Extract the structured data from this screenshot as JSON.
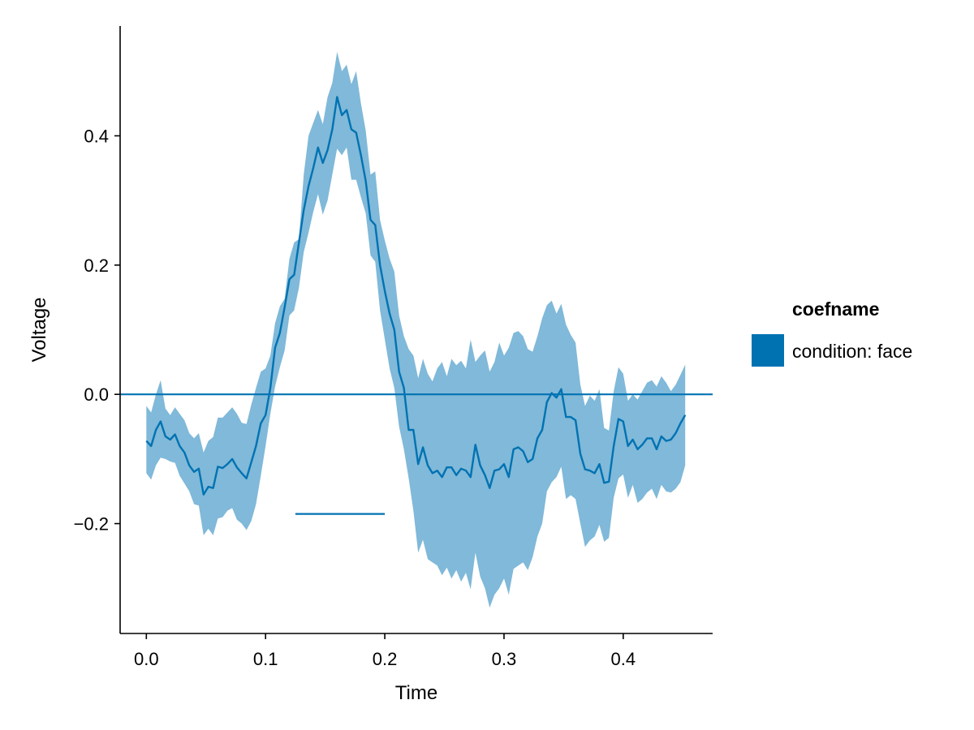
{
  "chart_data": {
    "type": "line",
    "xlabel": "Time",
    "ylabel": "Voltage",
    "xlim": [
      -0.022,
      0.475
    ],
    "ylim": [
      -0.37,
      0.57
    ],
    "x_ticks": [
      0.0,
      0.1,
      0.2,
      0.3,
      0.4
    ],
    "x_tick_labels": [
      "0.0",
      "0.1",
      "0.2",
      "0.3",
      "0.4"
    ],
    "y_ticks": [
      -0.2,
      0.0,
      0.2,
      0.4
    ],
    "y_tick_labels": [
      "−0.2",
      "0.0",
      "0.2",
      "0.4"
    ],
    "grid": false,
    "legend": {
      "position": "right",
      "title": "coefname",
      "entries": [
        {
          "label": "condition: face",
          "color": "#0072b2"
        }
      ]
    },
    "colors": {
      "line": "#0072b2",
      "band": "#80b9d9"
    },
    "series": [
      {
        "name": "condition: face",
        "x": [
          0.0,
          0.004,
          0.008,
          0.012,
          0.016,
          0.02,
          0.024,
          0.028,
          0.032,
          0.036,
          0.04,
          0.044,
          0.048,
          0.052,
          0.056,
          0.06,
          0.064,
          0.068,
          0.072,
          0.076,
          0.08,
          0.084,
          0.088,
          0.092,
          0.096,
          0.1,
          0.104,
          0.108,
          0.112,
          0.116,
          0.12,
          0.124,
          0.128,
          0.132,
          0.136,
          0.14,
          0.144,
          0.148,
          0.152,
          0.156,
          0.16,
          0.164,
          0.168,
          0.172,
          0.176,
          0.18,
          0.184,
          0.188,
          0.192,
          0.196,
          0.2,
          0.204,
          0.208,
          0.212,
          0.216,
          0.22,
          0.224,
          0.228,
          0.232,
          0.236,
          0.24,
          0.244,
          0.248,
          0.252,
          0.256,
          0.26,
          0.264,
          0.268,
          0.272,
          0.276,
          0.28,
          0.284,
          0.288,
          0.292,
          0.296,
          0.3,
          0.304,
          0.308,
          0.312,
          0.316,
          0.32,
          0.324,
          0.328,
          0.332,
          0.336,
          0.34,
          0.344,
          0.348,
          0.352,
          0.356,
          0.36,
          0.364,
          0.368,
          0.372,
          0.376,
          0.38,
          0.384,
          0.388,
          0.392,
          0.396,
          0.4,
          0.404,
          0.408,
          0.412,
          0.416,
          0.42,
          0.424,
          0.428,
          0.432,
          0.436,
          0.44,
          0.444,
          0.448,
          0.452
        ],
        "y": [
          -0.072,
          -0.08,
          -0.055,
          -0.042,
          -0.065,
          -0.07,
          -0.062,
          -0.08,
          -0.09,
          -0.11,
          -0.12,
          -0.115,
          -0.155,
          -0.143,
          -0.145,
          -0.112,
          -0.114,
          -0.108,
          -0.1,
          -0.113,
          -0.122,
          -0.13,
          -0.105,
          -0.08,
          -0.045,
          -0.032,
          0.01,
          0.072,
          0.095,
          0.135,
          0.178,
          0.185,
          0.235,
          0.285,
          0.322,
          0.35,
          0.382,
          0.358,
          0.378,
          0.41,
          0.46,
          0.432,
          0.44,
          0.41,
          0.405,
          0.37,
          0.33,
          0.27,
          0.262,
          0.2,
          0.16,
          0.125,
          0.1,
          0.035,
          0.01,
          -0.055,
          -0.055,
          -0.108,
          -0.082,
          -0.11,
          -0.122,
          -0.118,
          -0.128,
          -0.113,
          -0.113,
          -0.125,
          -0.115,
          -0.118,
          -0.128,
          -0.078,
          -0.11,
          -0.125,
          -0.145,
          -0.118,
          -0.116,
          -0.108,
          -0.128,
          -0.085,
          -0.082,
          -0.088,
          -0.105,
          -0.1,
          -0.068,
          -0.055,
          -0.012,
          0.002,
          -0.005,
          0.008,
          -0.035,
          -0.035,
          -0.04,
          -0.092,
          -0.116,
          -0.118,
          -0.122,
          -0.108,
          -0.137,
          -0.135,
          -0.08,
          -0.038,
          -0.042,
          -0.08,
          -0.07,
          -0.085,
          -0.078,
          -0.068,
          -0.068,
          -0.085,
          -0.065,
          -0.072,
          -0.07,
          -0.06,
          -0.045,
          -0.032
        ],
        "lower": [
          -0.122,
          -0.132,
          -0.11,
          -0.098,
          -0.1,
          -0.104,
          -0.106,
          -0.126,
          -0.138,
          -0.15,
          -0.17,
          -0.172,
          -0.218,
          -0.208,
          -0.218,
          -0.192,
          -0.19,
          -0.18,
          -0.176,
          -0.194,
          -0.2,
          -0.21,
          -0.196,
          -0.17,
          -0.126,
          -0.08,
          -0.03,
          0.012,
          0.042,
          0.068,
          0.122,
          0.13,
          0.165,
          0.22,
          0.25,
          0.282,
          0.31,
          0.278,
          0.3,
          0.34,
          0.38,
          0.37,
          0.382,
          0.332,
          0.332,
          0.305,
          0.28,
          0.215,
          0.205,
          0.13,
          0.085,
          0.04,
          0.01,
          -0.05,
          -0.085,
          -0.13,
          -0.18,
          -0.245,
          -0.225,
          -0.255,
          -0.26,
          -0.265,
          -0.28,
          -0.268,
          -0.285,
          -0.272,
          -0.29,
          -0.276,
          -0.302,
          -0.245,
          -0.282,
          -0.3,
          -0.33,
          -0.31,
          -0.3,
          -0.285,
          -0.31,
          -0.27,
          -0.265,
          -0.26,
          -0.272,
          -0.252,
          -0.22,
          -0.2,
          -0.15,
          -0.136,
          -0.128,
          -0.112,
          -0.162,
          -0.156,
          -0.162,
          -0.2,
          -0.236,
          -0.226,
          -0.22,
          -0.202,
          -0.228,
          -0.222,
          -0.16,
          -0.13,
          -0.124,
          -0.16,
          -0.14,
          -0.168,
          -0.162,
          -0.152,
          -0.146,
          -0.162,
          -0.14,
          -0.15,
          -0.152,
          -0.146,
          -0.136,
          -0.11
        ],
        "upper": [
          -0.018,
          -0.028,
          0.0,
          0.022,
          -0.022,
          -0.032,
          -0.02,
          -0.03,
          -0.04,
          -0.06,
          -0.068,
          -0.06,
          -0.09,
          -0.072,
          -0.066,
          -0.036,
          -0.036,
          -0.028,
          -0.02,
          -0.03,
          -0.044,
          -0.046,
          -0.016,
          0.01,
          0.035,
          0.04,
          0.06,
          0.11,
          0.136,
          0.148,
          0.21,
          0.235,
          0.24,
          0.34,
          0.4,
          0.42,
          0.44,
          0.418,
          0.46,
          0.482,
          0.53,
          0.5,
          0.51,
          0.48,
          0.5,
          0.45,
          0.408,
          0.34,
          0.345,
          0.27,
          0.238,
          0.21,
          0.19,
          0.122,
          0.09,
          0.07,
          0.06,
          0.025,
          0.055,
          0.032,
          0.02,
          0.04,
          0.05,
          0.028,
          0.055,
          0.045,
          0.052,
          0.04,
          0.085,
          0.05,
          0.06,
          0.068,
          0.035,
          0.05,
          0.08,
          0.06,
          0.072,
          0.095,
          0.098,
          0.09,
          0.07,
          0.066,
          0.09,
          0.118,
          0.138,
          0.145,
          0.125,
          0.14,
          0.108,
          0.092,
          0.08,
          0.015,
          -0.018,
          -0.002,
          -0.01,
          0.008,
          -0.052,
          -0.056,
          0.005,
          0.042,
          0.032,
          -0.01,
          0.0,
          -0.008,
          0.005,
          0.018,
          0.022,
          0.012,
          0.028,
          0.018,
          0.005,
          0.015,
          0.03,
          0.046
        ]
      }
    ],
    "hlines": [
      {
        "y": 0.0,
        "color": "#0072b2"
      }
    ],
    "segments": [
      {
        "x": [
          0.125,
          0.2
        ],
        "y": -0.185,
        "color": "#0072b2"
      }
    ]
  }
}
